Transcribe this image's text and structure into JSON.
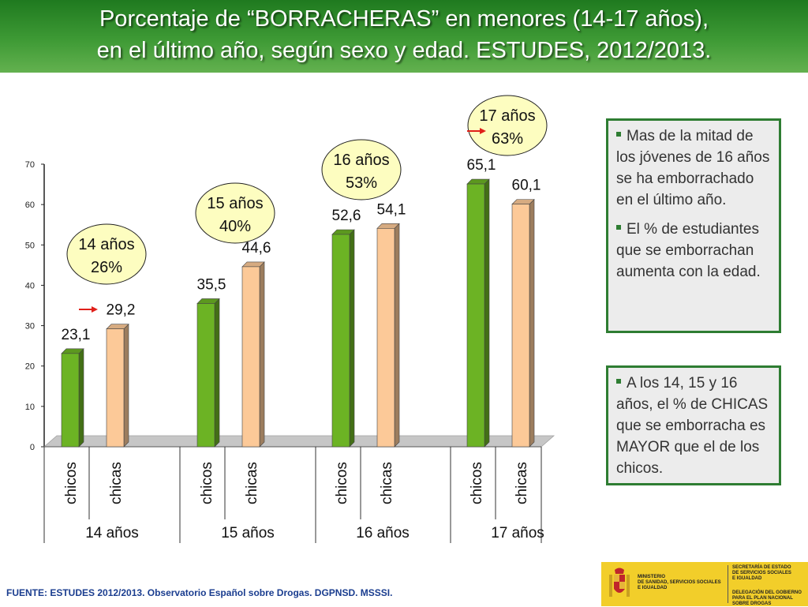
{
  "title": {
    "line1": "Porcentaje de “BORRACHERAS” en menores (14-17 años),",
    "line2": "en el último año, según sexo y edad. ESTUDES, 2012/2013."
  },
  "chart_data": {
    "type": "bar",
    "title": "Porcentaje de “BORRACHERAS” en menores (14-17 años), en el último año, según sexo y edad. ESTUDES, 2012/2013.",
    "xlabel": "",
    "ylabel": "",
    "ylim": [
      0,
      70
    ],
    "yticks": [
      0,
      10,
      20,
      30,
      40,
      50,
      60,
      70
    ],
    "grid": false,
    "groups": [
      {
        "label": "14 años",
        "bars": [
          {
            "label": "chicos",
            "value": 23.1,
            "text": "23,1"
          },
          {
            "label": "chicas",
            "value": 29.2,
            "text": "29,2"
          }
        ],
        "bubble": {
          "age": "14 años",
          "pct": "26%"
        },
        "arrow": true
      },
      {
        "label": "15 años",
        "bars": [
          {
            "label": "chicos",
            "value": 35.5,
            "text": "35,5"
          },
          {
            "label": "chicas",
            "value": 44.6,
            "text": "44,6"
          }
        ],
        "bubble": {
          "age": "15 años",
          "pct": "40%"
        },
        "arrow": false
      },
      {
        "label": "16 años",
        "bars": [
          {
            "label": "chicos",
            "value": 52.6,
            "text": "52,6"
          },
          {
            "label": "chicas",
            "value": 54.1,
            "text": "54,1"
          }
        ],
        "bubble": {
          "age": "16 años",
          "pct": "53%"
        },
        "arrow": false
      },
      {
        "label": "17 años",
        "bars": [
          {
            "label": "chicos",
            "value": 65.1,
            "text": "65,1"
          },
          {
            "label": "chicas",
            "value": 60.1,
            "text": "60,1"
          }
        ],
        "bubble": {
          "age": "17 años",
          "pct": "63%"
        },
        "arrow": true
      }
    ],
    "colors": {
      "chicos": "#6cb324",
      "chicas": "#fcc998",
      "bubble": "#fdfdc0",
      "arrow": "#e0201a"
    }
  },
  "notes": {
    "box1": [
      "Mas de la mitad de los jóvenes de 16 años se ha emborrachado en el último año.",
      "El % de estudiantes que se emborrachan aumenta con la edad."
    ],
    "box2": [
      "A los 14, 15 y 16 años, el % de CHICAS que se emborracha es MAYOR que el de los chicos."
    ]
  },
  "source": "FUENTE: ESTUDES 2012/2013. Observatorio Español sobre Drogas. DGPNSD. MSSSI.",
  "logo": {
    "ministry": [
      "MINISTERIO",
      "DE SANIDAD, SERVICIOS SOCIALES",
      "E IGUALDAD"
    ],
    "secretaria": [
      "SECRETARÍA DE ESTADO",
      "DE SERVICIOS SOCIALES",
      "E IGUALDAD"
    ],
    "delegacion": [
      "DELEGACIÓN DEL GOBIERNO",
      "PARA EL PLAN NACIONAL SOBRE DROGAS"
    ]
  }
}
